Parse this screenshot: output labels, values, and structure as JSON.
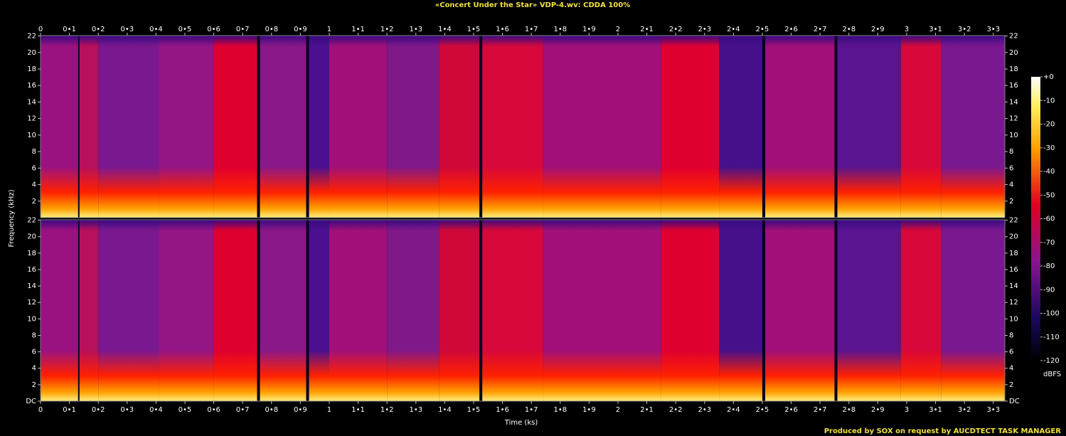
{
  "chart_data": {
    "type": "spectrogram",
    "title": "«Concert Under the Star» VDP-4.wv: CDDA 100%",
    "x_label": "Time (ks)",
    "y_label": "Frequency (kHz)",
    "footer": "Produced by SOX on request by AUCDTECT TASK MANAGER",
    "xlim": [
      0,
      3.34
    ],
    "xticks": [
      0,
      {
        "value": 0.1,
        "label": "0•1"
      },
      {
        "value": 0.2,
        "label": "0•2"
      },
      {
        "value": 0.3,
        "label": "0•3"
      },
      {
        "value": 0.4,
        "label": "0•4"
      },
      {
        "value": 0.5,
        "label": "0•5"
      },
      {
        "value": 0.6,
        "label": "0•6"
      },
      {
        "value": 0.7,
        "label": "0•7"
      },
      {
        "value": 0.8,
        "label": "0•8"
      },
      {
        "value": 0.9,
        "label": "0•9"
      },
      1,
      {
        "value": 1.1,
        "label": "1•1"
      },
      {
        "value": 1.2,
        "label": "1•2"
      },
      {
        "value": 1.3,
        "label": "1•3"
      },
      {
        "value": 1.4,
        "label": "1•4"
      },
      {
        "value": 1.5,
        "label": "1•5"
      },
      {
        "value": 1.6,
        "label": "1•6"
      },
      {
        "value": 1.7,
        "label": "1•7"
      },
      {
        "value": 1.8,
        "label": "1•8"
      },
      {
        "value": 1.9,
        "label": "1•9"
      },
      2,
      {
        "value": 2.1,
        "label": "2•1"
      },
      {
        "value": 2.2,
        "label": "2•2"
      },
      {
        "value": 2.3,
        "label": "2•3"
      },
      {
        "value": 2.4,
        "label": "2•4"
      },
      {
        "value": 2.5,
        "label": "2•5"
      },
      {
        "value": 2.6,
        "label": "2•6"
      },
      {
        "value": 2.7,
        "label": "2•7"
      },
      {
        "value": 2.8,
        "label": "2•8"
      },
      {
        "value": 2.9,
        "label": "2•9"
      },
      3,
      {
        "value": 3.1,
        "label": "3•1"
      },
      {
        "value": 3.2,
        "label": "3•2"
      },
      {
        "value": 3.3,
        "label": "3•3"
      }
    ],
    "ylim": [
      0,
      22.05
    ],
    "yticks": [
      {
        "value": 0,
        "label": "DC"
      },
      2,
      4,
      6,
      8,
      10,
      12,
      14,
      16,
      18,
      20,
      22
    ],
    "segments": [
      {
        "start": 0,
        "end": 0.13,
        "color": "#9a1280"
      },
      {
        "start": 0.135,
        "end": 0.2,
        "color": "#b8105a"
      },
      {
        "start": 0.2,
        "end": 0.41,
        "color": "#7a1890"
      },
      {
        "start": 0.41,
        "end": 0.6,
        "color": "#941585"
      },
      {
        "start": 0.6,
        "end": 0.75,
        "color": "#e00030"
      },
      {
        "start": 0.76,
        "end": 0.92,
        "color": "#8a1888"
      },
      {
        "start": 0.93,
        "end": 1.0,
        "color": "#4a1090"
      },
      {
        "start": 1.0,
        "end": 1.2,
        "color": "#a01078"
      },
      {
        "start": 1.2,
        "end": 1.38,
        "color": "#801888"
      },
      {
        "start": 1.38,
        "end": 1.52,
        "color": "#d0083a"
      },
      {
        "start": 1.53,
        "end": 1.74,
        "color": "#d8083a"
      },
      {
        "start": 1.74,
        "end": 2.15,
        "color": "#a01078"
      },
      {
        "start": 2.15,
        "end": 2.35,
        "color": "#e00030"
      },
      {
        "start": 2.35,
        "end": 2.5,
        "color": "#45108a"
      },
      {
        "start": 2.51,
        "end": 2.75,
        "color": "#a01078"
      },
      {
        "start": 2.76,
        "end": 2.98,
        "color": "#5a1490"
      },
      {
        "start": 2.98,
        "end": 3.12,
        "color": "#d8083a"
      },
      {
        "start": 3.12,
        "end": 3.34,
        "color": "#7a1890"
      }
    ],
    "colorbar": {
      "label": "dBFS",
      "lim": [
        -120,
        0
      ],
      "ticks": [
        {
          "value": 0,
          "label": "+0"
        },
        -10,
        -20,
        -30,
        -40,
        -50,
        -60,
        -70,
        -80,
        -90,
        -100,
        -110,
        -120
      ]
    }
  }
}
